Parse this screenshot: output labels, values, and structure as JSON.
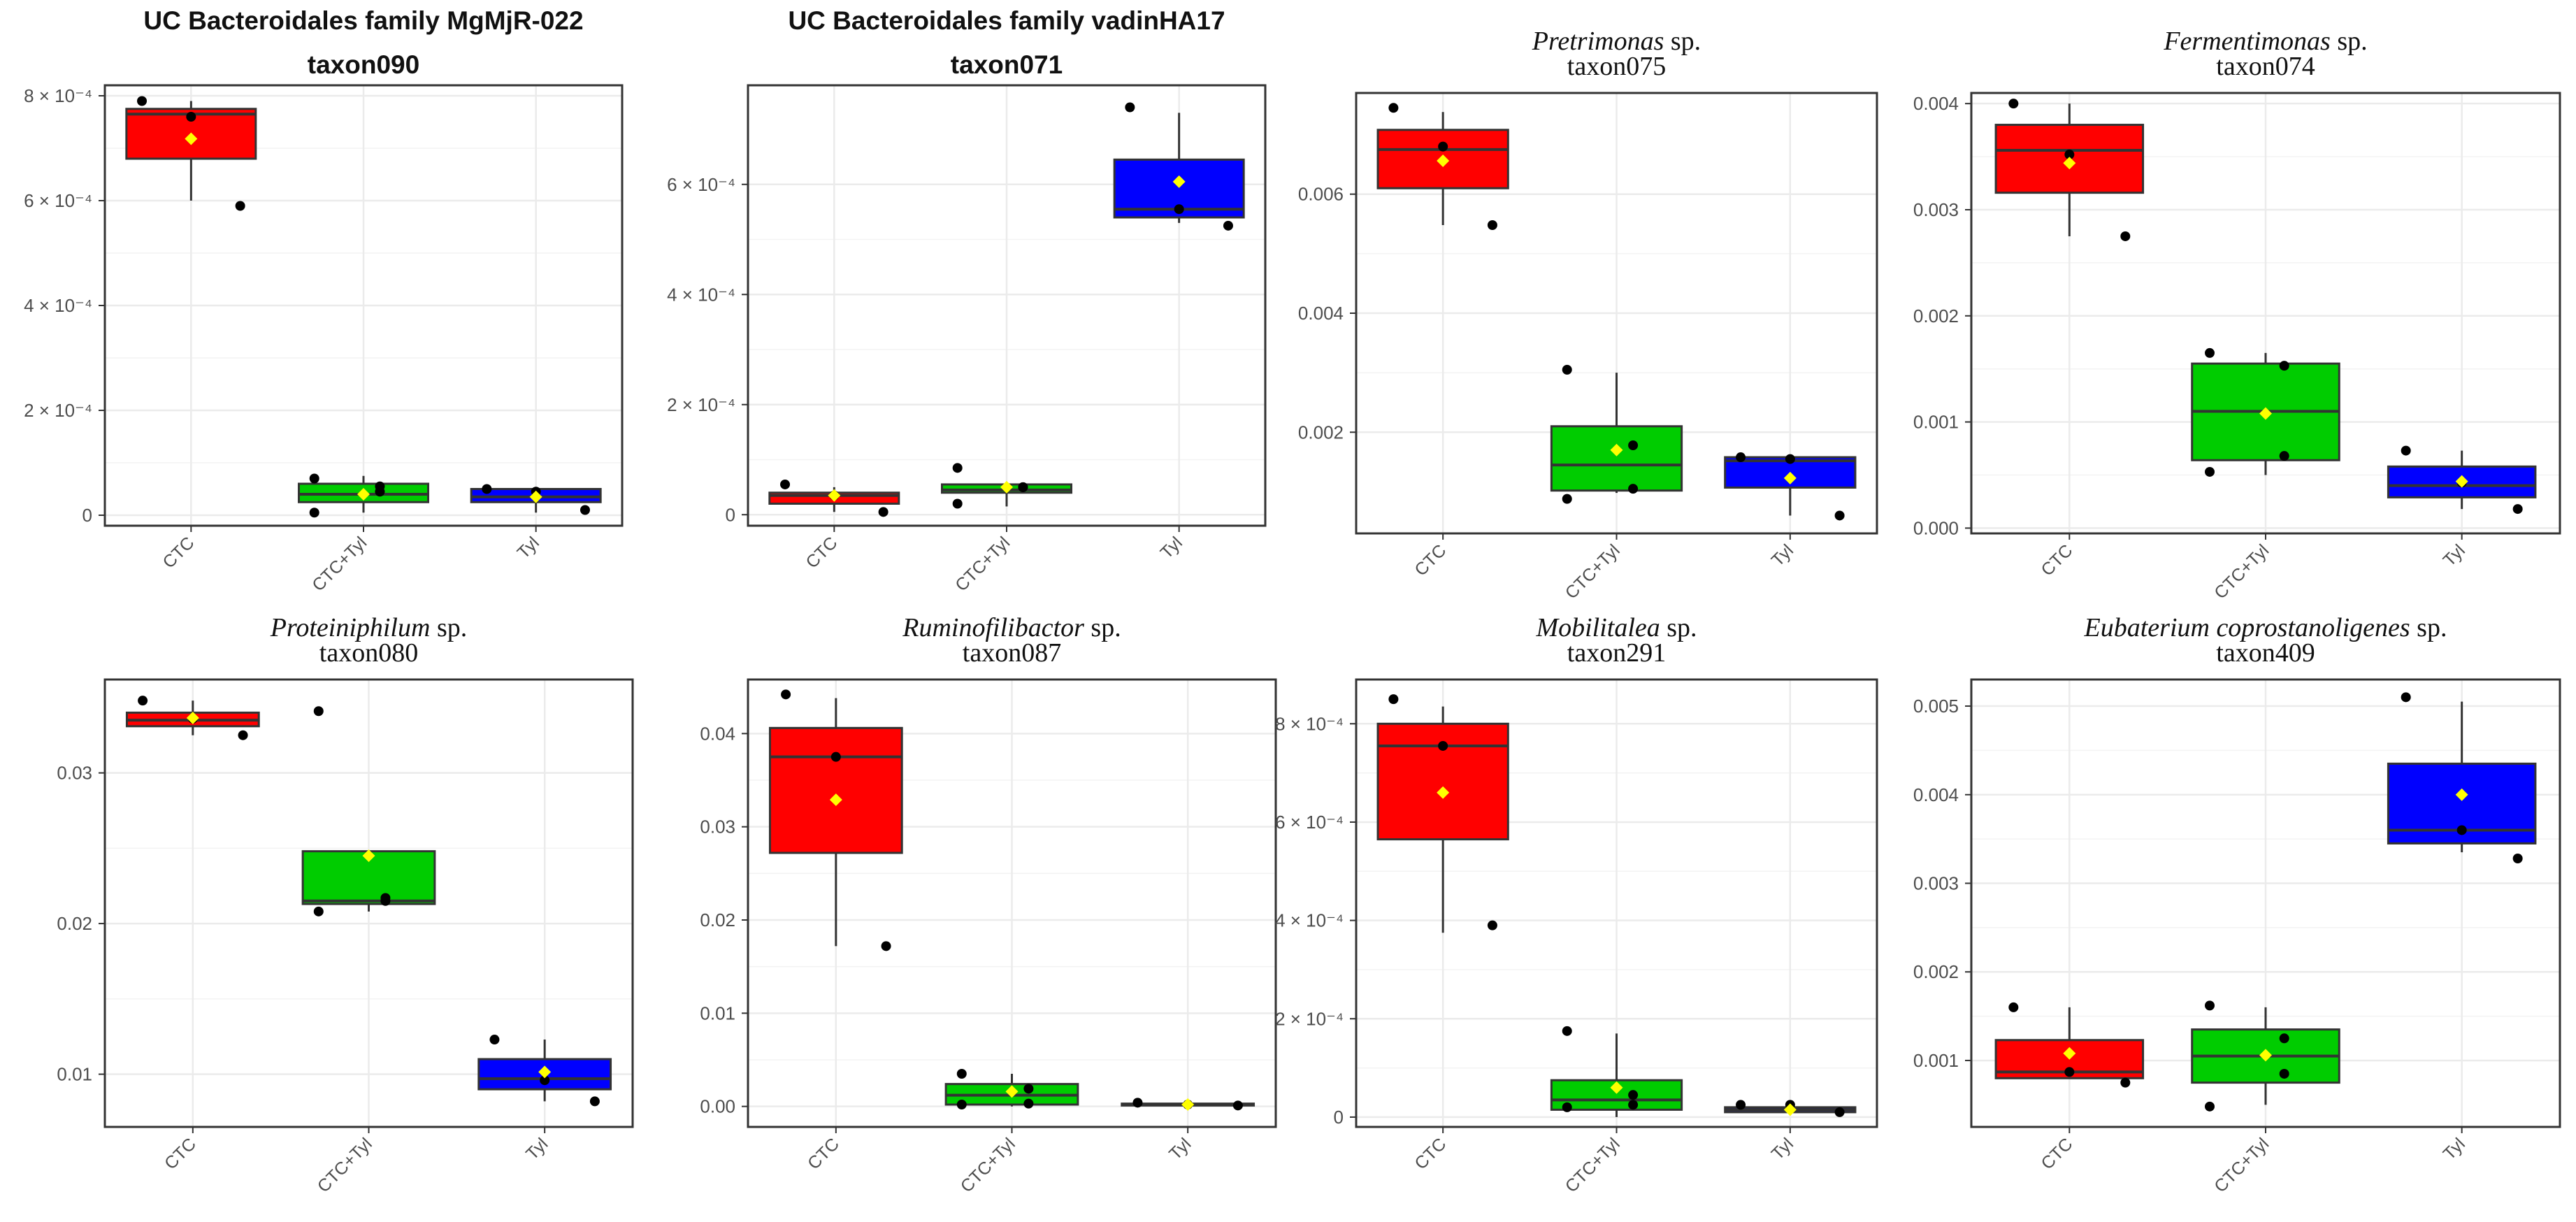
{
  "figure": {
    "colors": {
      "CTC": "#ff0000",
      "CTC+Tyl": "#00cc00",
      "Tyl": "#0000ff",
      "mean": "#ffff00",
      "point": "#000000",
      "grid": "#ebebeb",
      "panel_border": "#333333"
    }
  },
  "chart_data": [
    {
      "type": "box",
      "title_lines": [
        [
          {
            "text": "UC Bacteroidales family MgMjR-022",
            "italic": false
          }
        ],
        [
          {
            "text": "taxon090",
            "italic": false
          }
        ]
      ],
      "title_style": "bold-sans",
      "categories": [
        "CTC",
        "CTC+Tyl",
        "Tyl"
      ],
      "ylim": [
        -2e-05,
        0.00082
      ],
      "yticks": [
        0,
        0.0002,
        0.0004,
        0.0006,
        0.0008
      ],
      "ytick_labels": [
        "0",
        "2 × 10⁻⁴",
        "4 × 10⁻⁴",
        "6 × 10⁻⁴",
        "8 × 10⁻⁴"
      ],
      "boxes": [
        {
          "q1": 0.00068,
          "median": 0.000765,
          "q3": 0.000775,
          "whisker_low": 0.0006,
          "whisker_high": 0.00079,
          "mean": 0.000718,
          "points": [
            0.00079,
            0.00076,
            0.00059
          ]
        },
        {
          "q1": 2.5e-05,
          "median": 4e-05,
          "q3": 6e-05,
          "whisker_low": 5e-06,
          "whisker_high": 7.5e-05,
          "mean": 4e-05,
          "points": [
            7e-05,
            5.5e-05,
            4.5e-05,
            5e-06
          ]
        },
        {
          "q1": 2.5e-05,
          "median": 3.5e-05,
          "q3": 5e-05,
          "whisker_low": 5e-06,
          "whisker_high": 5e-05,
          "mean": 3.5e-05,
          "points": [
            5e-05,
            4.5e-05,
            1e-05
          ]
        }
      ]
    },
    {
      "type": "box",
      "title_lines": [
        [
          {
            "text": "UC Bacteroidales family vadinHA17",
            "italic": false
          }
        ],
        [
          {
            "text": "taxon071",
            "italic": false
          }
        ]
      ],
      "title_style": "bold-sans",
      "categories": [
        "CTC",
        "CTC+Tyl",
        "Tyl"
      ],
      "ylim": [
        -2e-05,
        0.00078
      ],
      "yticks": [
        0,
        0.0002,
        0.0004,
        0.0006
      ],
      "ytick_labels": [
        "0",
        "2 × 10⁻⁴",
        "4 × 10⁻⁴",
        "6 × 10⁻⁴"
      ],
      "boxes": [
        {
          "q1": 2e-05,
          "median": 3.5e-05,
          "q3": 4e-05,
          "whisker_low": 5e-06,
          "whisker_high": 5e-05,
          "mean": 3.5e-05,
          "points": [
            5.5e-05,
            3.5e-05,
            5e-06
          ]
        },
        {
          "q1": 4e-05,
          "median": 4.5e-05,
          "q3": 5.5e-05,
          "whisker_low": 1.5e-05,
          "whisker_high": 5.5e-05,
          "mean": 5e-05,
          "points": [
            8.5e-05,
            5e-05,
            5e-05,
            2e-05
          ]
        },
        {
          "q1": 0.00054,
          "median": 0.000555,
          "q3": 0.000645,
          "whisker_low": 0.00053,
          "whisker_high": 0.00073,
          "mean": 0.000605,
          "points": [
            0.00074,
            0.000555,
            0.000525
          ]
        }
      ]
    },
    {
      "type": "box",
      "title_lines": [
        [
          {
            "text": "Pretrimonas",
            "italic": true
          },
          {
            "text": " sp.",
            "italic": false
          }
        ],
        [
          {
            "text": "taxon075",
            "italic": false
          }
        ]
      ],
      "title_style": "serif",
      "categories": [
        "CTC",
        "CTC+Tyl",
        "Tyl"
      ],
      "ylim": [
        0.0003,
        0.0077
      ],
      "yticks": [
        0.002,
        0.004,
        0.006
      ],
      "ytick_labels": [
        "0.002",
        "0.004",
        "0.006"
      ],
      "boxes": [
        {
          "q1": 0.0061,
          "median": 0.00675,
          "q3": 0.00708,
          "whisker_low": 0.00548,
          "whisker_high": 0.00738,
          "mean": 0.00656,
          "points": [
            0.00745,
            0.0068,
            0.00548
          ]
        },
        {
          "q1": 0.00102,
          "median": 0.00145,
          "q3": 0.0021,
          "whisker_low": 0.00098,
          "whisker_high": 0.003,
          "mean": 0.0017,
          "points": [
            0.00305,
            0.00178,
            0.00105,
            0.00088
          ]
        },
        {
          "q1": 0.00107,
          "median": 0.00152,
          "q3": 0.00158,
          "whisker_low": 0.0006,
          "whisker_high": 0.00158,
          "mean": 0.00123,
          "points": [
            0.00158,
            0.00155,
            0.0006
          ]
        }
      ]
    },
    {
      "type": "box",
      "title_lines": [
        [
          {
            "text": "Fermentimonas",
            "italic": true
          },
          {
            "text": " sp.",
            "italic": false
          }
        ],
        [
          {
            "text": "taxon074",
            "italic": false
          }
        ]
      ],
      "title_style": "serif",
      "categories": [
        "CTC",
        "CTC+Tyl",
        "Tyl"
      ],
      "ylim": [
        -5e-05,
        0.0041
      ],
      "yticks": [
        0,
        0.001,
        0.002,
        0.003,
        0.004
      ],
      "ytick_labels": [
        "0.000",
        "0.001",
        "0.002",
        "0.003",
        "0.004"
      ],
      "boxes": [
        {
          "q1": 0.00316,
          "median": 0.00356,
          "q3": 0.0038,
          "whisker_low": 0.00275,
          "whisker_high": 0.004,
          "mean": 0.00344,
          "points": [
            0.004,
            0.00352,
            0.00275
          ]
        },
        {
          "q1": 0.00064,
          "median": 0.0011,
          "q3": 0.00155,
          "whisker_low": 0.0005,
          "whisker_high": 0.00165,
          "mean": 0.00108,
          "points": [
            0.00165,
            0.00153,
            0.00068,
            0.00053
          ]
        },
        {
          "q1": 0.00029,
          "median": 0.0004,
          "q3": 0.00058,
          "whisker_low": 0.00018,
          "whisker_high": 0.00073,
          "mean": 0.00044,
          "points": [
            0.00073,
            0.00043,
            0.00018
          ]
        }
      ]
    },
    {
      "type": "box",
      "title_lines": [
        [
          {
            "text": "Proteiniphilum",
            "italic": true
          },
          {
            "text": " sp.",
            "italic": false
          }
        ],
        [
          {
            "text": "taxon080",
            "italic": false
          }
        ]
      ],
      "title_style": "serif",
      "categories": [
        "CTC",
        "CTC+Tyl",
        "Tyl"
      ],
      "ylim": [
        0.0065,
        0.0362
      ],
      "yticks": [
        0.01,
        0.02,
        0.03
      ],
      "ytick_labels": [
        "0.01",
        "0.02",
        "0.03"
      ],
      "boxes": [
        {
          "q1": 0.0331,
          "median": 0.0335,
          "q3": 0.034,
          "whisker_low": 0.0325,
          "whisker_high": 0.0348,
          "mean": 0.03365,
          "points": [
            0.0348,
            0.0336,
            0.0325
          ]
        },
        {
          "q1": 0.0213,
          "median": 0.0215,
          "q3": 0.0248,
          "whisker_low": 0.0208,
          "whisker_high": 0.0248,
          "mean": 0.0245,
          "points": [
            0.0341,
            0.0217,
            0.0215,
            0.0208
          ]
        },
        {
          "q1": 0.009,
          "median": 0.0097,
          "q3": 0.011,
          "whisker_low": 0.0082,
          "whisker_high": 0.0123,
          "mean": 0.01015,
          "points": [
            0.0123,
            0.0096,
            0.0082
          ]
        }
      ]
    },
    {
      "type": "box",
      "title_lines": [
        [
          {
            "text": "Ruminofilibactor",
            "italic": true
          },
          {
            "text": " sp.",
            "italic": false
          }
        ],
        [
          {
            "text": "taxon087",
            "italic": false
          }
        ]
      ],
      "title_style": "serif",
      "categories": [
        "CTC",
        "CTC+Tyl",
        "Tyl"
      ],
      "ylim": [
        -0.0022,
        0.0458
      ],
      "yticks": [
        0,
        0.01,
        0.02,
        0.03,
        0.04
      ],
      "ytick_labels": [
        "0.00",
        "0.01",
        "0.02",
        "0.03",
        "0.04"
      ],
      "boxes": [
        {
          "q1": 0.0272,
          "median": 0.0375,
          "q3": 0.0406,
          "whisker_low": 0.0172,
          "whisker_high": 0.0438,
          "mean": 0.0329,
          "points": [
            0.0442,
            0.0375,
            0.0172
          ]
        },
        {
          "q1": 0.0002,
          "median": 0.0012,
          "q3": 0.0024,
          "whisker_low": 0.0,
          "whisker_high": 0.0035,
          "mean": 0.0016,
          "points": [
            0.0035,
            0.0019,
            0.0003,
            0.0002
          ]
        },
        {
          "q1": 0.0001,
          "median": 0.0002,
          "q3": 0.0003,
          "whisker_low": 0.0,
          "whisker_high": 0.0004,
          "mean": 0.0002,
          "points": [
            0.0004,
            0.0002,
            0.0001
          ]
        }
      ]
    },
    {
      "type": "box",
      "title_lines": [
        [
          {
            "text": "Mobilitalea",
            "italic": true
          },
          {
            "text": " sp.",
            "italic": false
          }
        ],
        [
          {
            "text": "taxon291",
            "italic": false
          }
        ]
      ],
      "title_style": "serif",
      "categories": [
        "CTC",
        "CTC+Tyl",
        "Tyl"
      ],
      "ylim": [
        -2e-05,
        0.00089
      ],
      "yticks": [
        0,
        0.0002,
        0.0004,
        0.0006,
        0.0008
      ],
      "ytick_labels": [
        "0",
        "2 × 10⁻⁴",
        "4 × 10⁻⁴",
        "6 × 10⁻⁴",
        "8 × 10⁻⁴"
      ],
      "boxes": [
        {
          "q1": 0.000565,
          "median": 0.000755,
          "q3": 0.0008,
          "whisker_low": 0.000375,
          "whisker_high": 0.000835,
          "mean": 0.00066,
          "points": [
            0.00085,
            0.000755,
            0.00039
          ]
        },
        {
          "q1": 1.5e-05,
          "median": 3.5e-05,
          "q3": 7.5e-05,
          "whisker_low": 0.0,
          "whisker_high": 0.00017,
          "mean": 6e-05,
          "points": [
            0.000175,
            4.5e-05,
            2.5e-05,
            2e-05
          ]
        },
        {
          "q1": 1e-05,
          "median": 1.5e-05,
          "q3": 2e-05,
          "whisker_low": 5e-06,
          "whisker_high": 2.5e-05,
          "mean": 1.5e-05,
          "points": [
            2.5e-05,
            2.5e-05,
            1e-05
          ]
        }
      ]
    },
    {
      "type": "box",
      "title_lines": [
        [
          {
            "text": "Eubaterium coprostanoligenes",
            "italic": true
          },
          {
            "text": " sp.",
            "italic": false
          }
        ],
        [
          {
            "text": "taxon409",
            "italic": false
          }
        ]
      ],
      "title_style": "serif",
      "categories": [
        "CTC",
        "CTC+Tyl",
        "Tyl"
      ],
      "ylim": [
        0.00025,
        0.0053
      ],
      "yticks": [
        0.001,
        0.002,
        0.003,
        0.004,
        0.005
      ],
      "ytick_labels": [
        "0.001",
        "0.002",
        "0.003",
        "0.004",
        "0.005"
      ],
      "boxes": [
        {
          "q1": 0.0008,
          "median": 0.00087,
          "q3": 0.00123,
          "whisker_low": 0.0008,
          "whisker_high": 0.0016,
          "mean": 0.00108,
          "points": [
            0.0016,
            0.00087,
            0.00075
          ]
        },
        {
          "q1": 0.00075,
          "median": 0.00105,
          "q3": 0.00135,
          "whisker_low": 0.0005,
          "whisker_high": 0.0016,
          "mean": 0.00106,
          "points": [
            0.00162,
            0.00125,
            0.00085,
            0.00048
          ]
        },
        {
          "q1": 0.00345,
          "median": 0.0036,
          "q3": 0.00435,
          "whisker_low": 0.00335,
          "whisker_high": 0.00505,
          "mean": 0.004,
          "points": [
            0.0051,
            0.0036,
            0.00328
          ]
        }
      ]
    }
  ]
}
